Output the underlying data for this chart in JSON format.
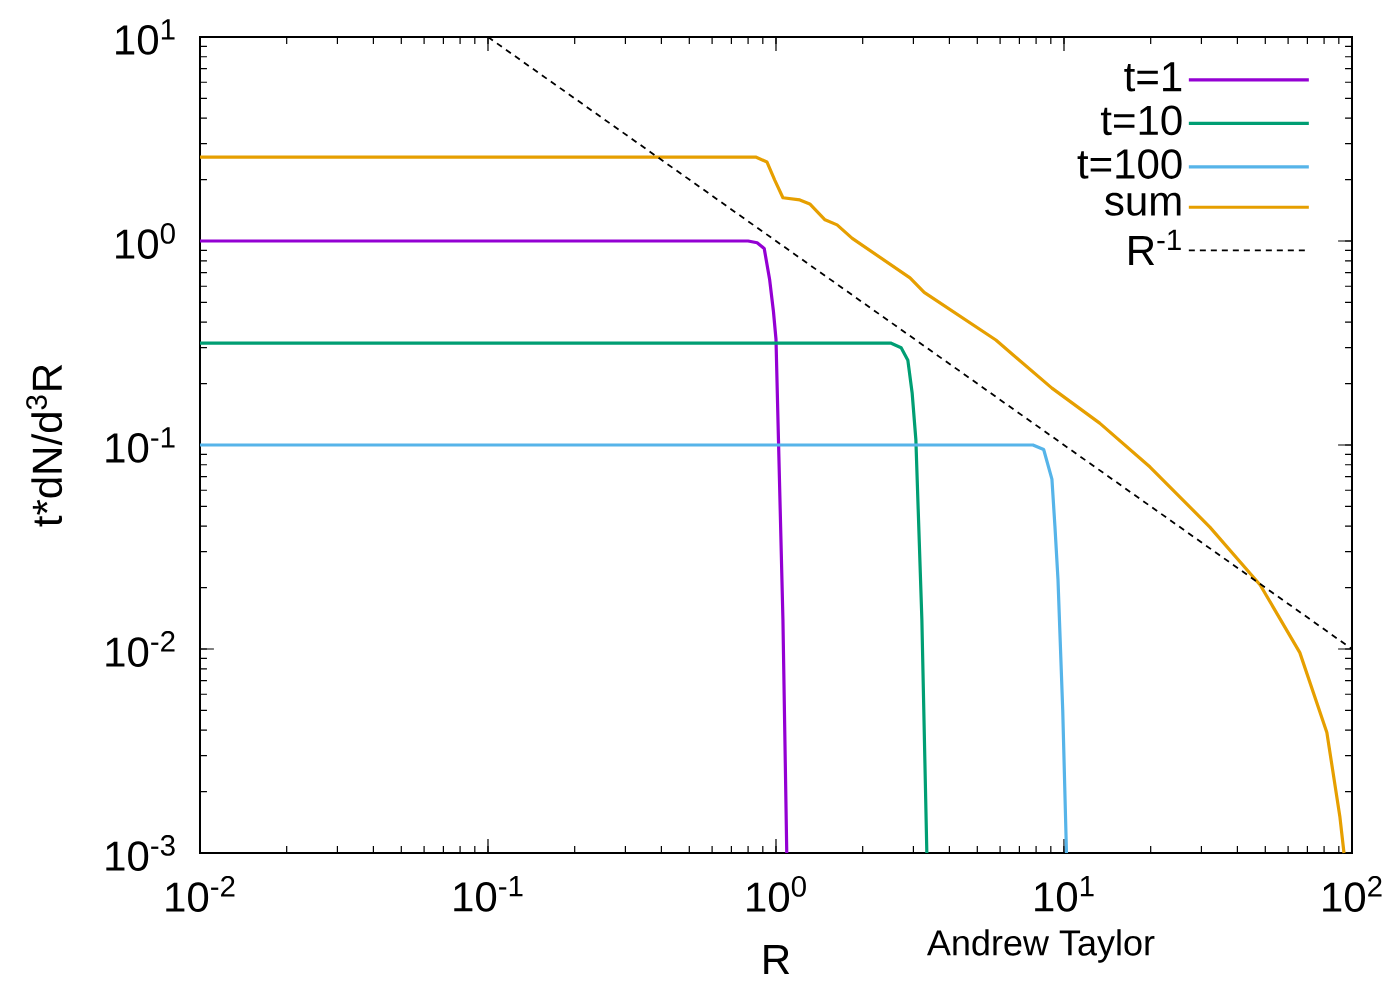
{
  "chart_data": {
    "type": "line",
    "xlabel": "R",
    "ylabel": "t*dN/d$^{3}$R",
    "xlim": [
      0.01,
      100
    ],
    "ylim": [
      0.001,
      10
    ],
    "log": "xy",
    "legend": "top right",
    "xticks": [
      {
        "value": 0.01,
        "label": "10$^{-2}$"
      },
      {
        "value": 0.1,
        "label": "10$^{-1}$"
      },
      {
        "value": 1,
        "label": "10$^{0}$"
      },
      {
        "value": 10,
        "label": "10$^{1}$"
      },
      {
        "value": 100,
        "label": "10$^{2}$"
      }
    ],
    "yticks": [
      {
        "value": 0.001,
        "label": "10$^{-3}$"
      },
      {
        "value": 0.01,
        "label": "10$^{-2}$"
      },
      {
        "value": 0.1,
        "label": "10$^{-1}$"
      },
      {
        "value": 1,
        "label": "10$^{0}$"
      },
      {
        "value": 10,
        "label": "10$^{1}$"
      }
    ],
    "annotations": [
      "Andrew Taylor"
    ],
    "series": [
      {
        "name": "t=1",
        "color": "#9400d3",
        "x": [
          0.01,
          0.8,
          0.86,
          0.91,
          0.95,
          0.98,
          1.0,
          1.02,
          1.057,
          1.09
        ],
        "values": [
          1,
          1,
          0.98,
          0.92,
          0.65,
          0.45,
          0.33,
          0.106,
          0.014,
          0.001
        ]
      },
      {
        "name": "t=10",
        "color": "#009e73",
        "x": [
          0.01,
          2.5,
          2.72,
          2.87,
          2.97,
          3.06,
          3.21,
          3.34
        ],
        "values": [
          0.316,
          0.316,
          0.3,
          0.26,
          0.18,
          0.106,
          0.014,
          0.001
        ]
      },
      {
        "name": "t=100",
        "color": "#56b4e9",
        "x": [
          0.01,
          7.8,
          8.5,
          9.08,
          9.3,
          9.53,
          9.9,
          10.2
        ],
        "values": [
          0.1,
          0.1,
          0.095,
          0.068,
          0.04,
          0.022,
          0.005,
          0.001
        ]
      },
      {
        "name": "sum",
        "color": "#e69f00",
        "x": [
          0.01,
          0.85,
          0.93,
          0.99,
          1.057,
          1.21,
          1.31,
          1.48,
          1.63,
          1.84,
          2.92,
          3.27,
          5.8,
          9.08,
          13.3,
          19.9,
          32.1,
          48,
          65.9,
          81.8,
          90.8,
          93.8
        ],
        "values": [
          2.58,
          2.58,
          2.44,
          1.99,
          1.63,
          1.59,
          1.52,
          1.27,
          1.2,
          1.03,
          0.66,
          0.56,
          0.327,
          0.19,
          0.128,
          0.078,
          0.0396,
          0.0206,
          0.0096,
          0.0039,
          0.0015,
          0.001
        ]
      },
      {
        "name": "R$^{-1}$",
        "color": "#000000",
        "line_style": "dashed",
        "x": [
          0.1,
          100
        ],
        "values": [
          10,
          0.01
        ]
      }
    ]
  }
}
